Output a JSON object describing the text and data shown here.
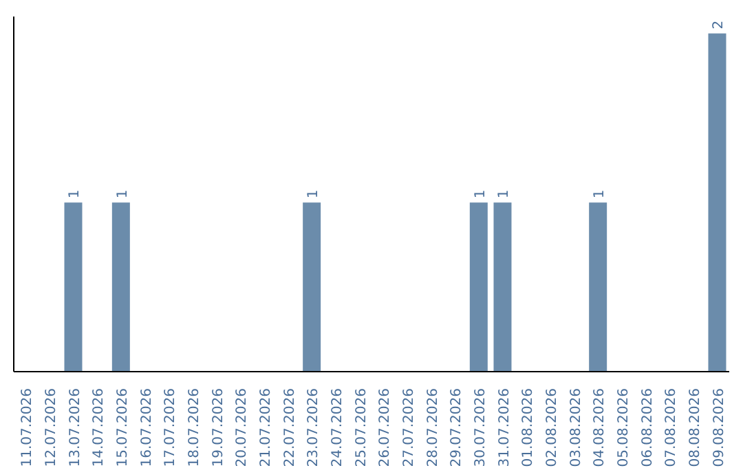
{
  "chart_data": {
    "type": "bar",
    "categories": [
      "11.07.2026",
      "12.07.2026",
      "13.07.2026",
      "14.07.2026",
      "15.07.2026",
      "16.07.2026",
      "17.07.2026",
      "18.07.2026",
      "19.07.2026",
      "20.07.2026",
      "21.07.2026",
      "22.07.2026",
      "23.07.2026",
      "24.07.2026",
      "25.07.2026",
      "26.07.2026",
      "27.07.2026",
      "28.07.2026",
      "29.07.2026",
      "30.07.2026",
      "31.07.2026",
      "01.08.2026",
      "02.08.2026",
      "03.08.2026",
      "04.08.2026",
      "05.08.2026",
      "06.08.2026",
      "07.08.2026",
      "08.08.2026",
      "09.08.2026"
    ],
    "values": [
      0,
      0,
      1,
      0,
      1,
      0,
      0,
      0,
      0,
      0,
      0,
      0,
      1,
      0,
      0,
      0,
      0,
      0,
      0,
      1,
      1,
      0,
      0,
      0,
      1,
      0,
      0,
      0,
      0,
      2
    ],
    "value_labels": [
      null,
      null,
      "1",
      null,
      "1",
      null,
      null,
      null,
      null,
      null,
      null,
      null,
      "1",
      null,
      null,
      null,
      null,
      null,
      null,
      "1",
      "1",
      null,
      null,
      null,
      "1",
      null,
      null,
      null,
      null,
      "2"
    ],
    "color": "#6b8cab",
    "relative": false,
    "grid": false,
    "legend": false
  }
}
